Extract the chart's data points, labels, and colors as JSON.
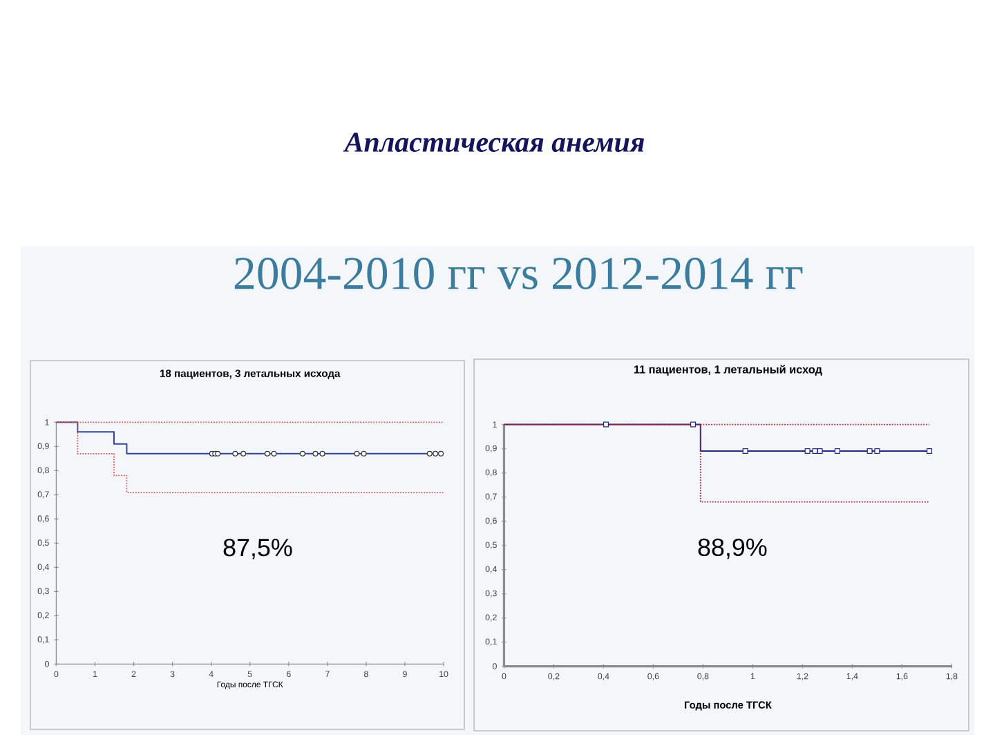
{
  "chart_data": [
    {
      "type": "other",
      "title": "Апластическая анемия",
      "subtitle": "2004-2010 гг vs 2012-2014 гг"
    },
    {
      "type": "step",
      "title": "18 пациентов, 3 летальных исхода",
      "xlabel": "Годы после ТГСК",
      "annotations": [
        "87,5%"
      ],
      "series": [
        {
          "type": "step",
          "color": "#33449a",
          "line_style": "solid",
          "x": [
            0,
            0.55,
            1.49,
            1.82,
            9.93
          ],
          "values": [
            1,
            0.96,
            0.91,
            0.87,
            0.87
          ]
        },
        {
          "type": "step",
          "color": "#e05a5a",
          "line_style": "dotted",
          "x": [
            0,
            10
          ],
          "values": [
            1,
            1
          ]
        },
        {
          "type": "step",
          "color": "#e05a5a",
          "line_style": "dotted",
          "x": [
            0,
            0.55,
            1.49,
            1.82,
            10
          ],
          "values": [
            1,
            0.87,
            0.78,
            0.71,
            0.71
          ]
        },
        {
          "type": "scatter",
          "color": "#333333",
          "marker": "circle",
          "x": [
            4.02,
            4.1,
            4.17,
            4.62,
            4.83,
            5.45,
            5.62,
            6.36,
            6.69,
            6.87,
            7.76,
            7.94,
            9.64,
            9.79,
            9.93
          ],
          "values": [
            0.87,
            0.87,
            0.87,
            0.87,
            0.87,
            0.87,
            0.87,
            0.87,
            0.87,
            0.87,
            0.87,
            0.87,
            0.87,
            0.87,
            0.87
          ]
        }
      ],
      "xlim": [
        0,
        10
      ],
      "ylim": [
        0,
        1
      ],
      "xticks": [
        0,
        1,
        2,
        3,
        4,
        5,
        6,
        7,
        8,
        9,
        10
      ],
      "yticks": [
        0,
        {
          "value": 0.1,
          "label": "0,1"
        },
        {
          "value": 0.2,
          "label": "0,2"
        },
        {
          "value": 0.3,
          "label": "0,3"
        },
        {
          "value": 0.4,
          "label": "0,4"
        },
        {
          "value": 0.5,
          "label": "0,5"
        },
        {
          "value": 0.6,
          "label": "0,6"
        },
        {
          "value": 0.7,
          "label": "0,7"
        },
        {
          "value": 0.8,
          "label": "0,8"
        },
        {
          "value": 0.9,
          "label": "0,9"
        },
        1
      ]
    },
    {
      "type": "step",
      "title": "11 пациентов, 1 летальный исход",
      "xlabel": "Годы после ТГСК",
      "annotations": [
        "88,9%"
      ],
      "series": [
        {
          "type": "step",
          "color": "#1f2a7a",
          "line_style": "solid",
          "x": [
            0,
            0.79,
            1.71
          ],
          "values": [
            1,
            0.89,
            0.89
          ]
        },
        {
          "type": "step",
          "color": "#c0203c",
          "line_style": "dotted",
          "x": [
            0,
            1.71
          ],
          "values": [
            1,
            1
          ]
        },
        {
          "type": "step",
          "color": "#c0203c",
          "line_style": "dotted",
          "x": [
            0,
            0.79,
            1.71
          ],
          "values": [
            1,
            0.68,
            0.68
          ]
        },
        {
          "type": "scatter",
          "color": "#1f2a7a",
          "marker": "square",
          "x": [
            0.41,
            0.76,
            0.97,
            1.22,
            1.25,
            1.27,
            1.34,
            1.47,
            1.5,
            1.71
          ],
          "values": [
            1,
            1,
            0.89,
            0.89,
            0.89,
            0.89,
            0.89,
            0.89,
            0.89,
            0.89
          ]
        }
      ],
      "xlim": [
        0,
        1.8
      ],
      "ylim": [
        0,
        1
      ],
      "xticks": [
        0,
        {
          "value": 0.2,
          "label": "0,2"
        },
        {
          "value": 0.4,
          "label": "0,4"
        },
        {
          "value": 0.6,
          "label": "0,6"
        },
        {
          "value": 0.8,
          "label": "0,8"
        },
        1,
        {
          "value": 1.2,
          "label": "1,2"
        },
        {
          "value": 1.4,
          "label": "1,4"
        },
        {
          "value": 1.6,
          "label": "1,6"
        },
        {
          "value": 1.8,
          "label": "1,8"
        }
      ],
      "yticks": [
        0,
        {
          "value": 0.1,
          "label": "0,1"
        },
        {
          "value": 0.2,
          "label": "0,2"
        },
        {
          "value": 0.3,
          "label": "0,3"
        },
        {
          "value": 0.4,
          "label": "0,4"
        },
        {
          "value": 0.5,
          "label": "0,5"
        },
        {
          "value": 0.6,
          "label": "0,6"
        },
        {
          "value": 0.7,
          "label": "0,7"
        },
        {
          "value": 0.8,
          "label": "0,8"
        },
        {
          "value": 0.9,
          "label": "0,9"
        },
        1
      ]
    }
  ]
}
